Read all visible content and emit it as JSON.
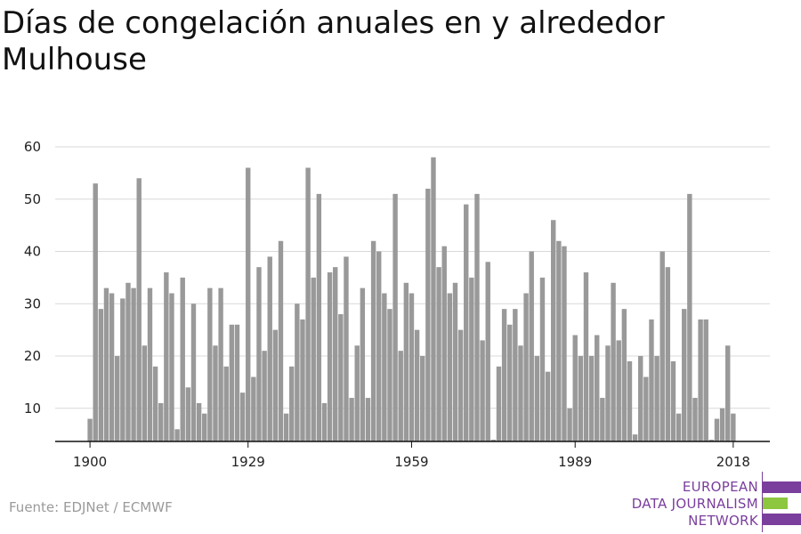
{
  "title": "Días de congelación anuales en y alrededor Mulhouse",
  "source": "Fuente: EDJNet / ECMWF",
  "logo": {
    "lines": [
      "EUROPEAN",
      "DATA JOURNALISM",
      "NETWORK"
    ],
    "colors": {
      "purple": "#7a3e9d",
      "green": "#8dc63f"
    }
  },
  "colors": {
    "bar": "#999999",
    "grid": "#d9d9d9",
    "axis": "#111111",
    "tick_text": "#222222"
  },
  "chart_data": {
    "type": "bar",
    "title": "Días de congelación anuales en y alrededor Mulhouse",
    "xlabel": "",
    "ylabel": "",
    "x_start": 1900,
    "x_end": 2018,
    "x_ticks": [
      1900,
      1929,
      1959,
      1989,
      2018
    ],
    "y_ticks": [
      10,
      20,
      30,
      40,
      50,
      60
    ],
    "ylim": [
      4,
      61
    ],
    "grid": true,
    "legend": "none",
    "values": [
      8,
      53,
      29,
      33,
      32,
      20,
      31,
      34,
      33,
      54,
      22,
      33,
      18,
      11,
      36,
      32,
      6,
      35,
      14,
      30,
      11,
      9,
      33,
      22,
      33,
      18,
      26,
      26,
      13,
      56,
      16,
      37,
      21,
      39,
      25,
      42,
      9,
      18,
      30,
      27,
      56,
      35,
      51,
      11,
      36,
      37,
      28,
      39,
      12,
      22,
      33,
      12,
      42,
      40,
      32,
      29,
      51,
      21,
      34,
      32,
      25,
      20,
      52,
      58,
      37,
      41,
      32,
      34,
      25,
      49,
      35,
      51,
      23,
      38,
      4,
      18,
      29,
      26,
      29,
      22,
      32,
      40,
      20,
      35,
      17,
      46,
      42,
      41,
      10,
      24,
      20,
      36,
      20,
      24,
      12,
      22,
      34,
      23,
      29,
      19,
      5,
      20,
      16,
      27,
      20,
      40,
      37,
      19,
      9,
      29,
      51,
      12,
      27,
      27,
      4,
      8,
      10,
      22,
      9
    ]
  }
}
